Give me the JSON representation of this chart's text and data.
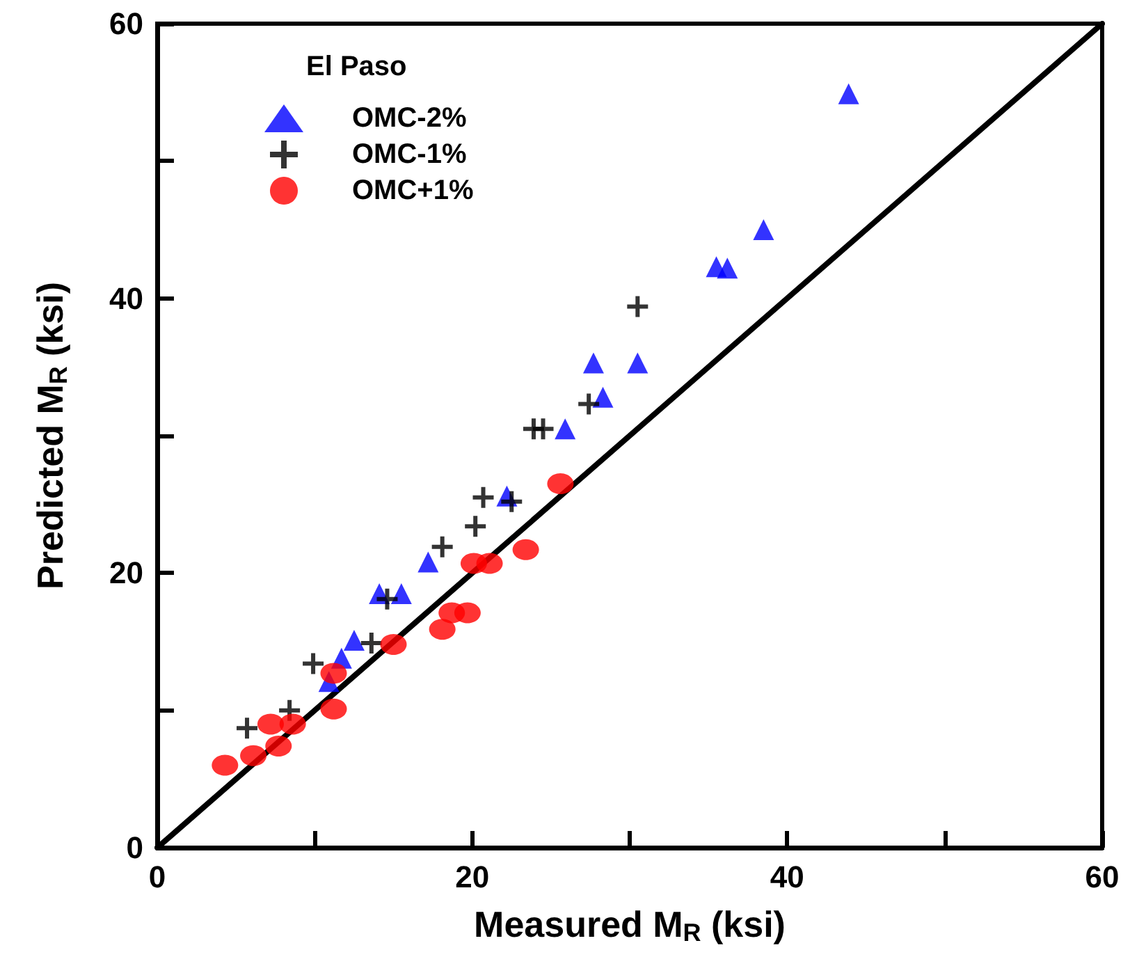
{
  "chart_data": {
    "type": "scatter",
    "xlabel": "Measured M$_{R}$ (ksi)",
    "ylabel": "Predicted M$_{R}$ (ksi)",
    "legend_title": "El Paso",
    "legend": "top left",
    "grid": false,
    "xlim": [
      0,
      60
    ],
    "ylim": [
      0,
      60
    ],
    "xticks": [
      0,
      {
        "value": 10,
        "label": null
      },
      20,
      {
        "value": 30,
        "label": null
      },
      40,
      {
        "value": 50,
        "label": null
      },
      60
    ],
    "yticks": [
      0,
      {
        "value": 10,
        "label": null
      },
      20,
      {
        "value": 30,
        "label": null
      },
      40,
      {
        "value": 50,
        "label": null
      },
      60
    ],
    "series": [
      {
        "name": "OMC-2%",
        "color": "#0000ff",
        "marker": "triangle",
        "x": [
          43.9,
          38.5,
          35.5,
          36.2,
          30.5,
          27.7,
          28.3,
          25.9,
          22.2,
          17.2,
          14.1,
          15.5,
          12.5,
          11.7,
          10.9
        ],
        "values": [
          54.9,
          45.0,
          42.3,
          42.2,
          35.3,
          35.3,
          32.8,
          30.5,
          25.6,
          20.8,
          18.5,
          18.5,
          15.1,
          13.8,
          12.1
        ]
      },
      {
        "name": "OMC-1%",
        "color": "#000000",
        "marker": "cross",
        "x": [
          30.5,
          27.4,
          23.9,
          24.5,
          20.7,
          22.5,
          20.2,
          18.1,
          14.6,
          13.6,
          9.9,
          8.4,
          5.7
        ],
        "values": [
          39.4,
          32.3,
          30.5,
          30.5,
          25.5,
          25.2,
          23.4,
          21.9,
          18.1,
          14.9,
          13.4,
          10.0,
          8.7
        ]
      },
      {
        "name": "OMC+1%",
        "color": "#ff0000",
        "marker": "circle",
        "x": [
          25.6,
          23.4,
          21.1,
          20.1,
          19.7,
          18.7,
          18.1,
          15.0,
          11.2,
          11.2,
          8.6,
          7.2,
          7.7,
          6.1,
          4.3
        ],
        "values": [
          26.5,
          21.7,
          20.7,
          20.7,
          17.1,
          17.1,
          15.9,
          14.8,
          10.1,
          12.7,
          9.0,
          9.0,
          7.4,
          6.7,
          6.0
        ]
      },
      {
        "type": "line",
        "color": "#000000",
        "marker": "none",
        "line_style": "solid",
        "x": [
          0,
          60
        ],
        "values": [
          0,
          60
        ]
      }
    ]
  }
}
